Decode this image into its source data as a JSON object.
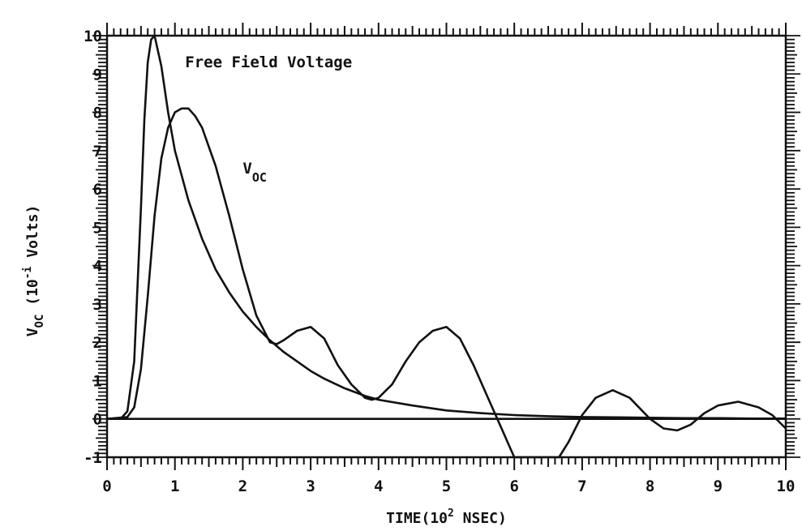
{
  "chart_data": {
    "type": "line",
    "title": "",
    "xlabel": {
      "main": "TIME(10",
      "sup": "2",
      "tail": " NSEC)"
    },
    "ylabel": {
      "main": "V",
      "sub": "OC",
      "mid": "  (10",
      "sup": "-i",
      "tail": "  Volts)"
    },
    "xlim": [
      0,
      10
    ],
    "ylim": [
      -1,
      10
    ],
    "xticks": [
      0,
      1,
      2,
      3,
      4,
      5,
      6,
      7,
      8,
      9,
      10
    ],
    "yticks": [
      -1,
      0,
      1,
      2,
      3,
      4,
      5,
      6,
      7,
      8,
      9,
      10
    ],
    "xtick_labels": [
      "0",
      "1",
      "2",
      "3",
      "4",
      "5",
      "6",
      "7",
      "8",
      "9",
      "10"
    ],
    "ytick_labels": [
      "-1",
      "0",
      "1",
      "2",
      "3",
      "4",
      "5",
      "6",
      "7",
      "8",
      "9",
      "10"
    ],
    "grid": false,
    "legend": "none",
    "annotations": [
      {
        "text": "Free Field Voltage",
        "x": 1.15,
        "y": 9.3
      },
      {
        "text": "V",
        "sub": "OC",
        "x": 2.0,
        "y": 6.4
      }
    ],
    "series": [
      {
        "x": [
          0.0,
          0.2,
          0.3,
          0.4,
          0.5,
          0.55,
          0.6,
          0.65,
          0.7,
          0.8,
          0.9,
          1.0,
          1.2,
          1.4,
          1.6,
          1.8,
          2.0,
          2.2,
          2.4,
          2.6,
          2.8,
          3.0,
          3.2,
          3.5,
          3.8,
          4.0,
          4.5,
          5.0,
          5.5,
          6.0,
          6.5,
          7.0,
          7.5,
          8.0,
          8.5,
          9.0,
          9.5,
          10.0
        ],
        "y": [
          0.0,
          0.0,
          0.2,
          1.5,
          5.5,
          7.8,
          9.3,
          9.9,
          10.0,
          9.2,
          8.0,
          7.0,
          5.7,
          4.7,
          3.9,
          3.3,
          2.8,
          2.4,
          2.05,
          1.75,
          1.5,
          1.25,
          1.05,
          0.8,
          0.6,
          0.5,
          0.35,
          0.22,
          0.15,
          0.1,
          0.07,
          0.05,
          0.04,
          0.03,
          0.02,
          0.02,
          0.01,
          0.01
        ]
      },
      {
        "x": [
          0.0,
          0.3,
          0.4,
          0.5,
          0.6,
          0.7,
          0.8,
          0.9,
          1.0,
          1.1,
          1.2,
          1.3,
          1.4,
          1.6,
          1.8,
          2.0,
          2.2,
          2.4,
          2.5,
          2.6,
          2.8,
          3.0,
          3.2,
          3.4,
          3.6,
          3.8,
          3.9,
          4.0,
          4.2,
          4.4,
          4.6,
          4.8,
          5.0,
          5.2,
          5.4,
          5.6,
          5.8,
          5.9,
          6.0,
          6.66,
          6.8,
          7.0,
          7.2,
          7.45,
          7.7,
          8.0,
          8.2,
          8.4,
          8.6,
          8.8,
          9.0,
          9.3,
          9.6,
          9.8,
          10.0
        ],
        "y": [
          0.0,
          0.05,
          0.3,
          1.3,
          3.2,
          5.3,
          6.8,
          7.6,
          8.0,
          8.1,
          8.1,
          7.9,
          7.6,
          6.6,
          5.3,
          3.9,
          2.7,
          2.0,
          1.95,
          2.05,
          2.3,
          2.4,
          2.1,
          1.4,
          0.9,
          0.55,
          0.5,
          0.55,
          0.9,
          1.5,
          2.0,
          2.3,
          2.4,
          2.1,
          1.4,
          0.6,
          -0.2,
          -0.6,
          -1.0,
          -1.0,
          -0.6,
          0.1,
          0.55,
          0.75,
          0.55,
          0.0,
          -0.25,
          -0.3,
          -0.15,
          0.15,
          0.35,
          0.45,
          0.3,
          0.1,
          -0.25
        ]
      },
      {
        "x": [
          0.0,
          10.0
        ],
        "y": [
          0.0,
          0.0
        ]
      }
    ]
  }
}
